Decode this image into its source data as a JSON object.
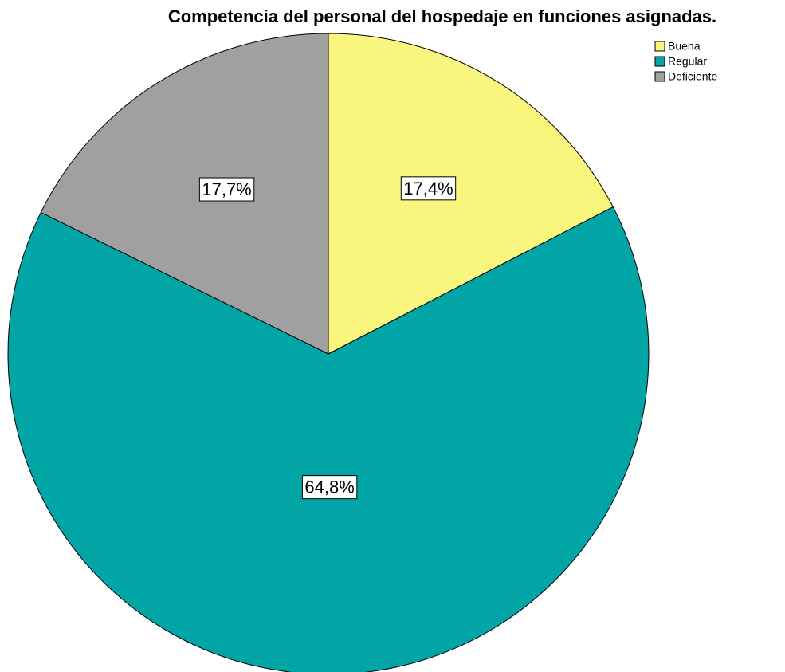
{
  "chart_data": {
    "type": "pie",
    "title": "Competencia del personal del hospedaje en funciones asignadas.",
    "categories": [
      "Buena",
      "Regular",
      "Deficiente"
    ],
    "values": [
      17.4,
      64.8,
      17.7
    ],
    "value_labels": [
      "17,4%",
      "64,8%",
      "17,7%"
    ],
    "colors": [
      "#f8f67c",
      "#02a5a5",
      "#a0a0a0"
    ],
    "legend": "top-right"
  }
}
